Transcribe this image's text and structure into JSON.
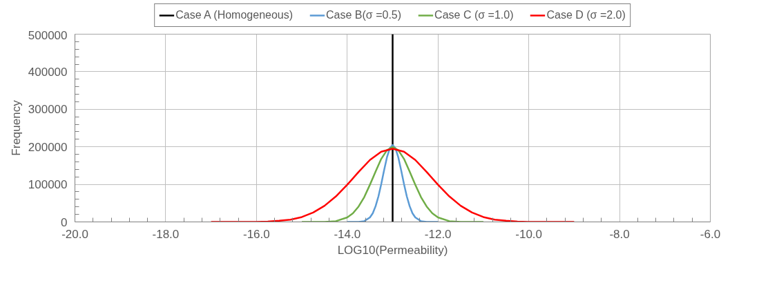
{
  "chart_data": {
    "type": "line",
    "xlabel": "LOG10(Permeability)",
    "ylabel": "Frequency",
    "xlim": [
      -20,
      -6
    ],
    "ylim": [
      0,
      500000
    ],
    "xticks": [
      {
        "value": -20,
        "label": "-20.0"
      },
      {
        "value": -18,
        "label": "-18.0"
      },
      {
        "value": -16,
        "label": "-16.0"
      },
      {
        "value": -14,
        "label": "-14.0"
      },
      {
        "value": -12,
        "label": "-12.0"
      },
      {
        "value": -10,
        "label": "-10.0"
      },
      {
        "value": -8,
        "label": "-8.0"
      },
      {
        "value": -6,
        "label": "-6.0"
      }
    ],
    "yticks": [
      0,
      100000,
      200000,
      300000,
      400000,
      500000
    ],
    "grid": true,
    "legend": "top",
    "marker": "none",
    "line_style": "solid",
    "series": [
      {
        "name": "Case A (Homogeneous)",
        "color": "#000000",
        "x": [
          -13,
          -13
        ],
        "values": [
          0,
          500000
        ]
      },
      {
        "name": "Case B(σ =0.5)",
        "color": "#5b9bd5",
        "x": [
          -14,
          -13.75,
          -13.625,
          -13.5,
          -13.4375,
          -13.375,
          -13.3125,
          -13.25,
          -13.1875,
          -13.125,
          -13.0625,
          -13,
          -12.9375,
          -12.875,
          -12.8125,
          -12.75,
          -12.6875,
          -12.625,
          -12.5625,
          -12.5,
          -12.375,
          -12.25,
          -12
        ],
        "values": [
          0,
          0,
          2000,
          12000,
          23000,
          42000,
          68000,
          101000,
          138000,
          172000,
          196000,
          205000,
          196000,
          172000,
          138000,
          101000,
          68000,
          42000,
          23000,
          12000,
          2000,
          0,
          0
        ]
      },
      {
        "name": "Case C (σ =1.0)",
        "color": "#70ad47",
        "x": [
          -15,
          -14.5,
          -14.25,
          -14,
          -13.875,
          -13.75,
          -13.625,
          -13.5,
          -13.375,
          -13.25,
          -13.125,
          -13,
          -12.875,
          -12.75,
          -12.625,
          -12.5,
          -12.375,
          -12.25,
          -12.125,
          -12,
          -11.75,
          -11.5,
          -11
        ],
        "values": [
          0,
          0,
          2000,
          12000,
          23000,
          41000,
          66000,
          99000,
          134000,
          168000,
          191000,
          200000,
          191000,
          168000,
          134000,
          99000,
          66000,
          41000,
          23000,
          12000,
          2000,
          0,
          0
        ]
      },
      {
        "name": "Case D (σ =2.0)",
        "color": "#ff0000",
        "x": [
          -17,
          -16.5,
          -16,
          -15.75,
          -15.5,
          -15.25,
          -15,
          -14.75,
          -14.5,
          -14.25,
          -14,
          -13.75,
          -13.5,
          -13.25,
          -13,
          -12.75,
          -12.5,
          -12.25,
          -12,
          -11.75,
          -11.5,
          -11.25,
          -11,
          -10.75,
          -10.5,
          -10.25,
          -10,
          -9.5,
          -9
        ],
        "values": [
          0,
          0,
          0,
          1000,
          3000,
          6000,
          13000,
          25000,
          43000,
          68000,
          99000,
          133000,
          165000,
          187000,
          195000,
          187000,
          165000,
          133000,
          99000,
          68000,
          43000,
          25000,
          13000,
          6000,
          3000,
          1000,
          0,
          0,
          0
        ]
      }
    ]
  }
}
